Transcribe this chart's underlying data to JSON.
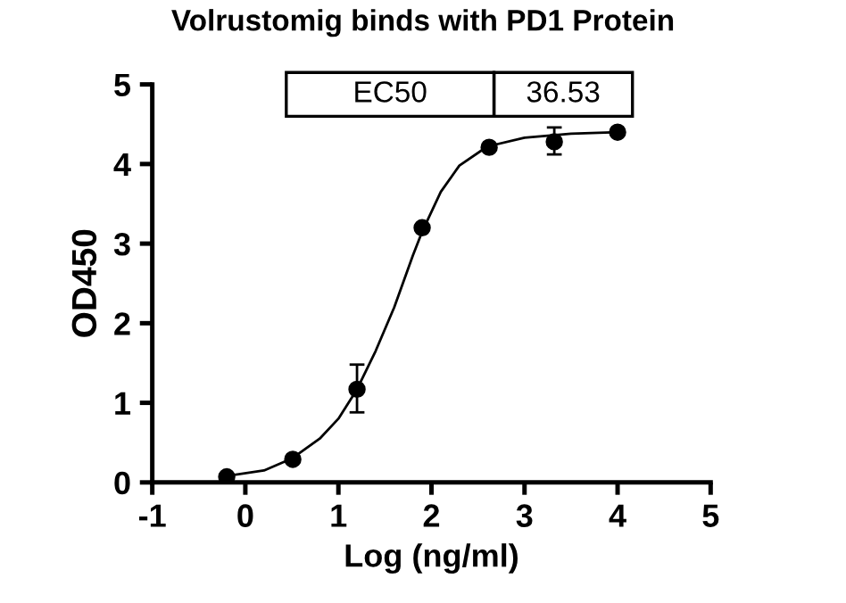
{
  "chart_data": {
    "type": "scatter",
    "title": "Volrustomig binds with PD1 Protein",
    "xlabel": "Log (ng/ml)",
    "ylabel": "OD450",
    "annotations": [
      "EC50",
      "36.53"
    ],
    "xlim": [
      -1,
      5
    ],
    "xticks": [
      -1,
      0,
      1,
      2,
      3,
      4,
      5
    ],
    "ylim": [
      0,
      5
    ],
    "yticks": [
      0,
      1,
      2,
      3,
      4,
      5
    ],
    "grid": false,
    "marker": "circle",
    "series": [
      {
        "color": "#000000",
        "x": [
          -0.2,
          0.51,
          1.2,
          1.9,
          2.62,
          3.32,
          4.0
        ],
        "values": [
          0.07,
          0.29,
          1.17,
          3.2,
          4.21,
          4.28,
          4.4
        ],
        "errors": [
          null,
          null,
          [
            0.88,
            1.48
          ],
          null,
          null,
          [
            4.12,
            4.46
          ],
          null
        ]
      },
      {
        "type": "line",
        "color": "#000000",
        "line_style": "solid",
        "marker": "none",
        "x": [
          -0.2,
          0.2,
          0.5,
          0.8,
          1.0,
          1.2,
          1.4,
          1.6,
          1.8,
          1.9,
          2.1,
          2.3,
          2.6,
          3.0,
          3.5,
          4.0
        ],
        "values": [
          0.08,
          0.15,
          0.3,
          0.55,
          0.8,
          1.17,
          1.65,
          2.2,
          2.85,
          3.15,
          3.65,
          3.98,
          4.22,
          4.33,
          4.38,
          4.4
        ]
      }
    ]
  }
}
